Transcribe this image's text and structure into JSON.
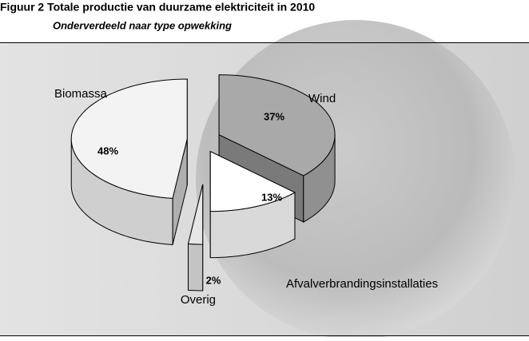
{
  "chart_data": {
    "type": "pie",
    "title": "Figuur 2 Totale productie van duurzame elektriciteit in 2010",
    "subtitle": "Onderverdeeld naar type opwekking",
    "categories": [
      "Wind",
      "Afvalverbrandingsinstallaties",
      "Overig",
      "Biomassa"
    ],
    "values": [
      37,
      13,
      2,
      48
    ],
    "value_labels": [
      "37%",
      "13%",
      "2%",
      "48%"
    ],
    "colors": [
      "#a9a9a9",
      "#ffffff",
      "#e6e6e6",
      "#f3f3f3"
    ]
  }
}
